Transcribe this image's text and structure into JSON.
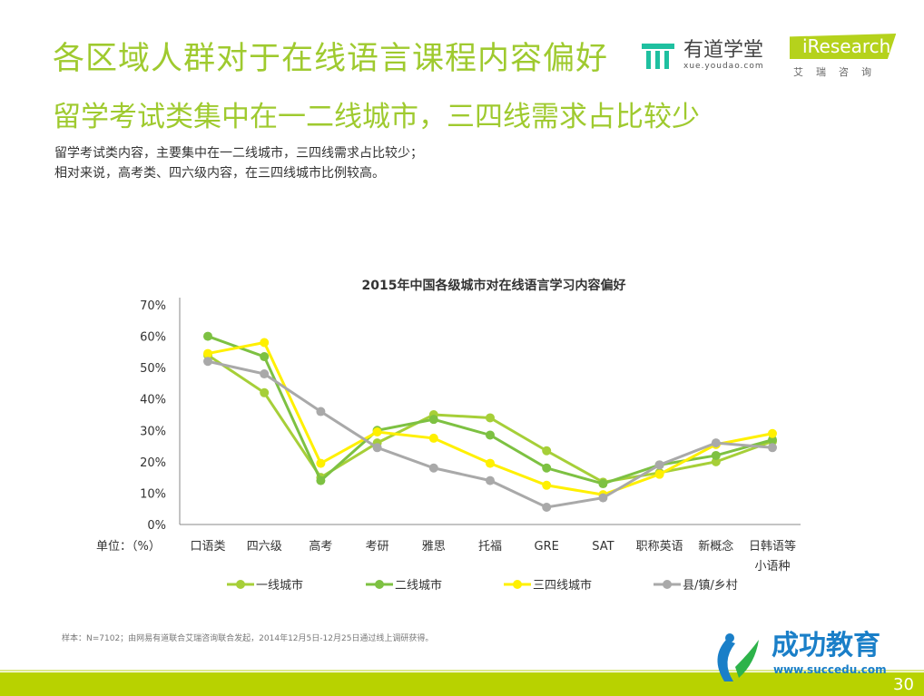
{
  "header": {
    "title": "各区域人群对于在线语言课程内容偏好",
    "subtitle": "留学考试类集中在一二线城市，三四线需求占比较少",
    "desc": [
      "留学考试类内容，主要集中在一二线城市，三四线需求占比较少；",
      "相对来说，高考类、四六级内容，在三四线城市比例较高。"
    ],
    "youdao_name": "有道学堂",
    "youdao_url": "xue.youdao.com",
    "iresearch_name": "iResearch",
    "iresearch_cn": "艾瑞咨询"
  },
  "chart_data": {
    "type": "line",
    "title": "2015年中国各级城市对在线语言学习内容偏好",
    "ylabel": "单位：（%）",
    "ylim": [
      0,
      70
    ],
    "yticks": [
      "0%",
      "10%",
      "20%",
      "30%",
      "40%",
      "50%",
      "60%",
      "70%"
    ],
    "categories": [
      "口语类",
      "四六级",
      "高考",
      "考研",
      "雅思",
      "托福",
      "GRE",
      "SAT",
      "职称英语",
      "新概念",
      "日韩语等小语种"
    ],
    "legend": "bottom",
    "series": [
      {
        "name": "一线城市",
        "color": "#a6cf38",
        "values": [
          54,
          42,
          15,
          26,
          35,
          34,
          23.5,
          13.5,
          16.5,
          20,
          26.5
        ]
      },
      {
        "name": "二线城市",
        "color": "#7dc142",
        "values": [
          60,
          53.5,
          14,
          30,
          33.5,
          28.5,
          18,
          13,
          19,
          22,
          27
        ]
      },
      {
        "name": "三四线城市",
        "color": "#fff000",
        "values": [
          54.5,
          58,
          19.5,
          29.5,
          27.5,
          19.5,
          12.5,
          9.5,
          16,
          25.5,
          29
        ]
      },
      {
        "name": "县/镇/乡村",
        "color": "#a9a9a9",
        "values": [
          52,
          48,
          36,
          24.5,
          18,
          14,
          5.5,
          8.5,
          19,
          26,
          24.5
        ]
      }
    ]
  },
  "footer": {
    "note": "样本：N=7102；由网易有道联合艾瑞咨询联合发起，2014年12月5日-12月25日通过线上调研获得。",
    "page": "30",
    "watermark_name": "成功教育",
    "watermark_url": "www.succedu.com"
  }
}
